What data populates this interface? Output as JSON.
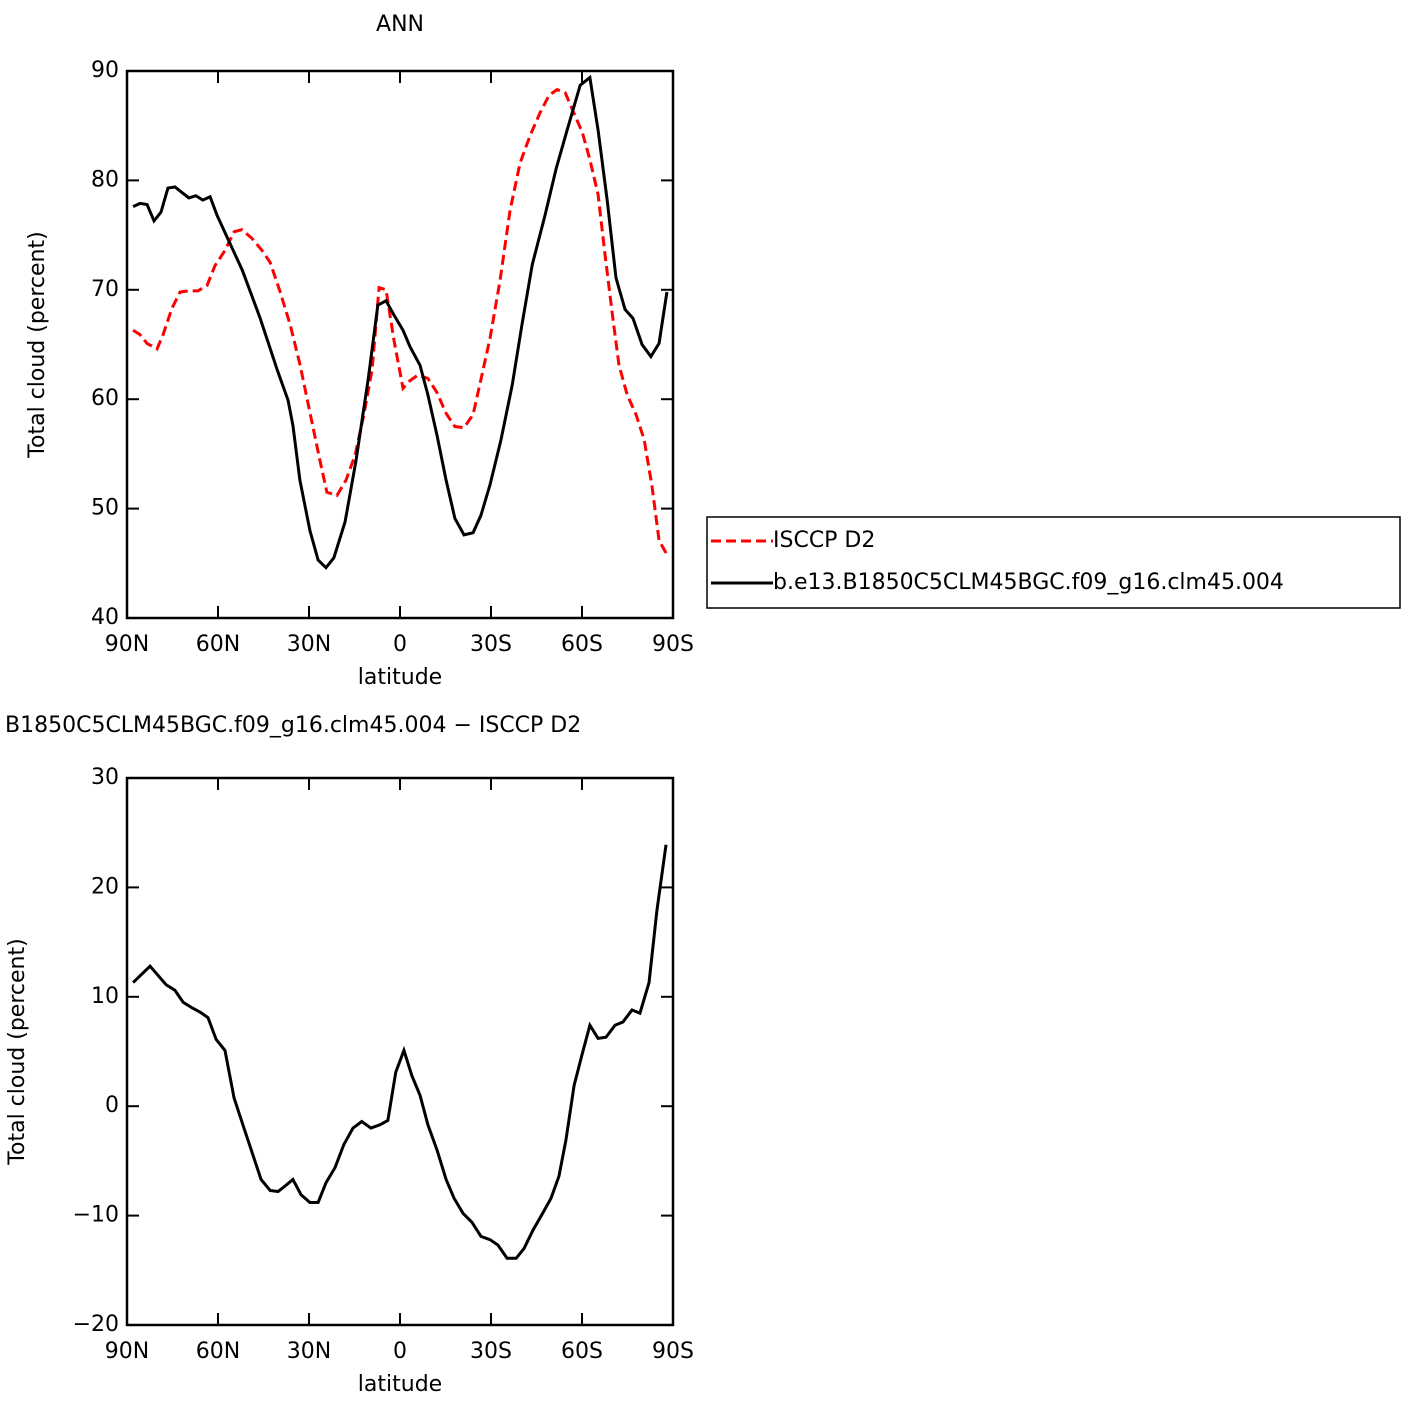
{
  "chart_data": [
    {
      "type": "line",
      "title": "ANN",
      "xlabel": "latitude",
      "ylabel": "Total cloud (percent)",
      "xlim": [
        90,
        -90
      ],
      "xticks": [
        {
          "value": 90,
          "label": "90N"
        },
        {
          "value": 60,
          "label": "60N"
        },
        {
          "value": 30,
          "label": "30N"
        },
        0,
        {
          "value": -30,
          "label": "30S"
        },
        {
          "value": -60,
          "label": "60S"
        },
        {
          "value": -90,
          "label": "90S"
        }
      ],
      "ylim": [
        40,
        90
      ],
      "yticks": [
        40,
        50,
        60,
        70,
        80,
        90
      ],
      "legend": "right",
      "series": [
        {
          "name": "ISCCP D2",
          "color": "#ff0000",
          "line_style": "dashed",
          "x": [
            88,
            85.7,
            83.4,
            80.1,
            78.1,
            75.2,
            72.5,
            69.6,
            66.6,
            63.6,
            61,
            57.7,
            54.7,
            52.1,
            48.8,
            45.5,
            42.8,
            39.5,
            36.2,
            33,
            29.7,
            26.4,
            24.1,
            20.8,
            17.8,
            14.8,
            11.9,
            9.2,
            6.9,
            4.6,
            2,
            -1,
            -3.3,
            -5.9,
            -9.2,
            -12.2,
            -15.2,
            -18.1,
            -21.1,
            -24.1,
            -27,
            -29.7,
            -33,
            -36.3,
            -39.6,
            -42.9,
            -46.2,
            -49.2,
            -51.8,
            -54.5,
            -57.1,
            -60.1,
            -62.6,
            -65.3,
            -67.6,
            -69.9,
            -72.2,
            -74.9,
            -77.8,
            -80.5,
            -83.1,
            -85.4,
            -88
          ],
          "values": [
            66.3,
            65.9,
            65.1,
            64.6,
            65.9,
            68.3,
            69.8,
            69.9,
            69.9,
            70.4,
            72.2,
            73.6,
            75.3,
            75.5,
            74.7,
            73.6,
            72.5,
            69.8,
            66.8,
            63.2,
            58.8,
            54.4,
            51.5,
            51.2,
            52.6,
            54.9,
            58.6,
            62.7,
            70.2,
            70,
            65.4,
            61,
            61.7,
            62.2,
            61.9,
            60.6,
            58.7,
            57.5,
            57.4,
            58.6,
            62.2,
            65.6,
            70.9,
            77.3,
            81.6,
            84.1,
            86.2,
            87.8,
            88.3,
            88,
            86.3,
            84.4,
            81.9,
            78.7,
            73.2,
            68,
            63.1,
            60.4,
            58.6,
            56.3,
            52,
            47.1,
            45.8
          ]
        },
        {
          "name": "b.e13.B1850C5CLM45BGC.f09_g16.clm45.004",
          "color": "#000000",
          "line_style": "solid",
          "x": [
            88,
            85.7,
            83.4,
            81.1,
            78.8,
            76.5,
            74.2,
            71.9,
            69.6,
            67.3,
            65,
            62.6,
            60.3,
            52,
            46.1,
            40.5,
            36.9,
            35.3,
            33,
            29.7,
            27,
            24.4,
            21.8,
            18.1,
            14.5,
            10.5,
            7.3,
            4.6,
            2,
            -1,
            -3.3,
            -6.6,
            -9.2,
            -12.2,
            -15.2,
            -18.1,
            -21.1,
            -24.1,
            -26.7,
            -29.7,
            -33.3,
            -37,
            -40.2,
            -43.6,
            -47.8,
            -51.5,
            -55.1,
            -59.4,
            -62.6,
            -65.3,
            -68.3,
            -71.2,
            -74.2,
            -76.8,
            -79.8,
            -82.7,
            -85.4,
            -88
          ],
          "values": [
            77.6,
            77.9,
            77.8,
            76.3,
            77.1,
            79.3,
            79.4,
            78.9,
            78.4,
            78.6,
            78.2,
            78.5,
            76.8,
            71.8,
            67.4,
            62.7,
            59.9,
            57.6,
            52.6,
            48,
            45.3,
            44.6,
            45.5,
            48.8,
            54.4,
            61.8,
            68.6,
            69,
            67.7,
            66.3,
            64.8,
            63.1,
            60.4,
            56.7,
            52.6,
            49.1,
            47.6,
            47.8,
            49.4,
            52.2,
            56.3,
            61.3,
            66.8,
            72.3,
            76.8,
            81.1,
            84.6,
            88.7,
            89.4,
            84.6,
            78.2,
            71.1,
            68.2,
            67.4,
            65,
            63.9,
            65.1,
            69.8
          ]
        }
      ]
    },
    {
      "type": "line",
      "title": "B1850C5CLM45BGC.f09_g16.clm45.004 − ISCCP D2",
      "xlabel": "latitude",
      "ylabel": "Total cloud (percent)",
      "xlim": [
        90,
        -90
      ],
      "xticks": [
        {
          "value": 90,
          "label": "90N"
        },
        {
          "value": 60,
          "label": "60N"
        },
        {
          "value": 30,
          "label": "30N"
        },
        0,
        {
          "value": -30,
          "label": "30S"
        },
        {
          "value": -60,
          "label": "60S"
        },
        {
          "value": -90,
          "label": "90S"
        }
      ],
      "ylim": [
        -20,
        30
      ],
      "yticks": [
        {
          "value": -20,
          "label": "−20"
        },
        {
          "value": -10,
          "label": "−10"
        },
        0,
        10,
        20,
        30
      ],
      "series": [
        {
          "color": "#000000",
          "line_style": "solid",
          "x": [
            88,
            82.4,
            77.1,
            74.2,
            71.5,
            68.6,
            65.9,
            63.3,
            60.6,
            57.7,
            54.7,
            51.8,
            48.8,
            45.8,
            42.8,
            40.2,
            37.9,
            35.3,
            32.6,
            29.7,
            27,
            24.4,
            21.4,
            18.5,
            15.5,
            12.6,
            9.6,
            6.6,
            4,
            1.4,
            -1.3,
            -3.9,
            -6.6,
            -9.2,
            -12.2,
            -15.2,
            -17.8,
            -20.8,
            -23.7,
            -26.7,
            -29.7,
            -32.3,
            -35.3,
            -38.3,
            -40.9,
            -43.9,
            -46.8,
            -49.8,
            -52.4,
            -54.7,
            -57.4,
            -60,
            -62.6,
            -65.3,
            -67.9,
            -70.9,
            -73.5,
            -76.5,
            -79.1,
            -82.1,
            -84.7,
            -87.7
          ],
          "values": [
            11.3,
            12.8,
            11.1,
            10.6,
            9.5,
            9,
            8.6,
            8.1,
            6.1,
            5.1,
            0.75,
            -1.7,
            -4.2,
            -6.7,
            -7.7,
            -7.8,
            -7.3,
            -6.7,
            -8.1,
            -8.8,
            -8.8,
            -7,
            -5.6,
            -3.5,
            -2,
            -1.4,
            -2,
            -1.7,
            -1.3,
            3.1,
            5.1,
            2.8,
            1,
            -1.7,
            -4,
            -6.7,
            -8.4,
            -9.8,
            -10.6,
            -11.9,
            -12.2,
            -12.7,
            -13.9,
            -13.9,
            -13,
            -11.3,
            -9.9,
            -8.4,
            -6.4,
            -3.1,
            1.9,
            4.7,
            7.4,
            6.2,
            6.3,
            7.4,
            7.7,
            8.8,
            8.5,
            11.3,
            17.9,
            23.9
          ]
        }
      ]
    }
  ]
}
